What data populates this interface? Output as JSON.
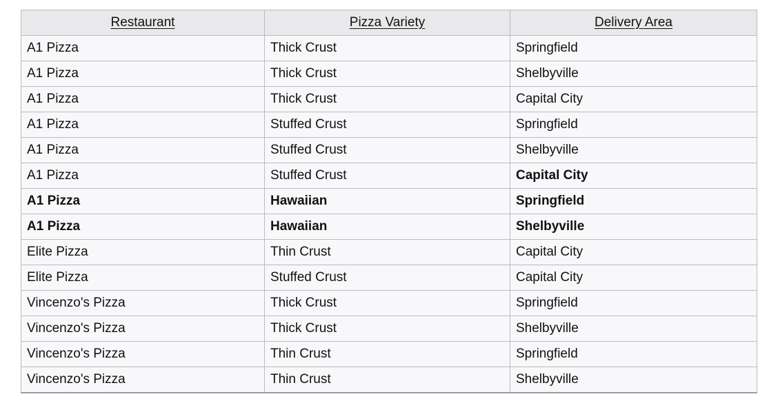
{
  "chart_data": {
    "type": "table",
    "title": "",
    "columns": [
      "Restaurant",
      "Pizza Variety",
      "Delivery Area"
    ],
    "rows": [
      {
        "cells": [
          "A1 Pizza",
          "Thick Crust",
          "Springfield"
        ],
        "styles": [
          "default",
          "default",
          "default"
        ]
      },
      {
        "cells": [
          "A1 Pizza",
          "Thick Crust",
          "Shelbyville"
        ],
        "styles": [
          "default",
          "default",
          "default"
        ]
      },
      {
        "cells": [
          "A1 Pizza",
          "Thick Crust",
          "Capital City"
        ],
        "styles": [
          "default",
          "default",
          "default"
        ]
      },
      {
        "cells": [
          "A1 Pizza",
          "Stuffed Crust",
          "Springfield"
        ],
        "styles": [
          "default",
          "default",
          "default"
        ]
      },
      {
        "cells": [
          "A1 Pizza",
          "Stuffed Crust",
          "Shelbyville"
        ],
        "styles": [
          "default",
          "default",
          "default"
        ]
      },
      {
        "cells": [
          "A1 Pizza",
          "Stuffed Crust",
          "Capital City"
        ],
        "styles": [
          "default",
          "default",
          "orange-bold"
        ]
      },
      {
        "cells": [
          "A1 Pizza",
          "Hawaiian",
          "Springfield"
        ],
        "styles": [
          "red-bold",
          "red-bold",
          "red-bold"
        ]
      },
      {
        "cells": [
          "A1 Pizza",
          "Hawaiian",
          "Shelbyville"
        ],
        "styles": [
          "red-bold",
          "red-bold",
          "red-bold"
        ]
      },
      {
        "cells": [
          "Elite Pizza",
          "Thin Crust",
          "Capital City"
        ],
        "styles": [
          "default",
          "default",
          "default"
        ]
      },
      {
        "cells": [
          "Elite Pizza",
          "Stuffed Crust",
          "Capital City"
        ],
        "styles": [
          "default",
          "default",
          "default"
        ]
      },
      {
        "cells": [
          "Vincenzo's Pizza",
          "Thick Crust",
          "Springfield"
        ],
        "styles": [
          "default",
          "default",
          "default"
        ]
      },
      {
        "cells": [
          "Vincenzo's Pizza",
          "Thick Crust",
          "Shelbyville"
        ],
        "styles": [
          "default",
          "default",
          "default"
        ]
      },
      {
        "cells": [
          "Vincenzo's Pizza",
          "Thin Crust",
          "Springfield"
        ],
        "styles": [
          "default",
          "default",
          "default"
        ]
      },
      {
        "cells": [
          "Vincenzo's Pizza",
          "Thin Crust",
          "Shelbyville"
        ],
        "styles": [
          "default",
          "default",
          "default"
        ]
      }
    ],
    "layout_hints": {
      "header_underlined": true,
      "header_align": "center",
      "body_align": "left",
      "grid": true
    }
  },
  "colors": {
    "header_bg": "#e9e9ec",
    "row_bg": "#f8f8fa",
    "border": "#b9bac0",
    "red_text": "#e8392c",
    "orange_text": "#bf6329"
  }
}
